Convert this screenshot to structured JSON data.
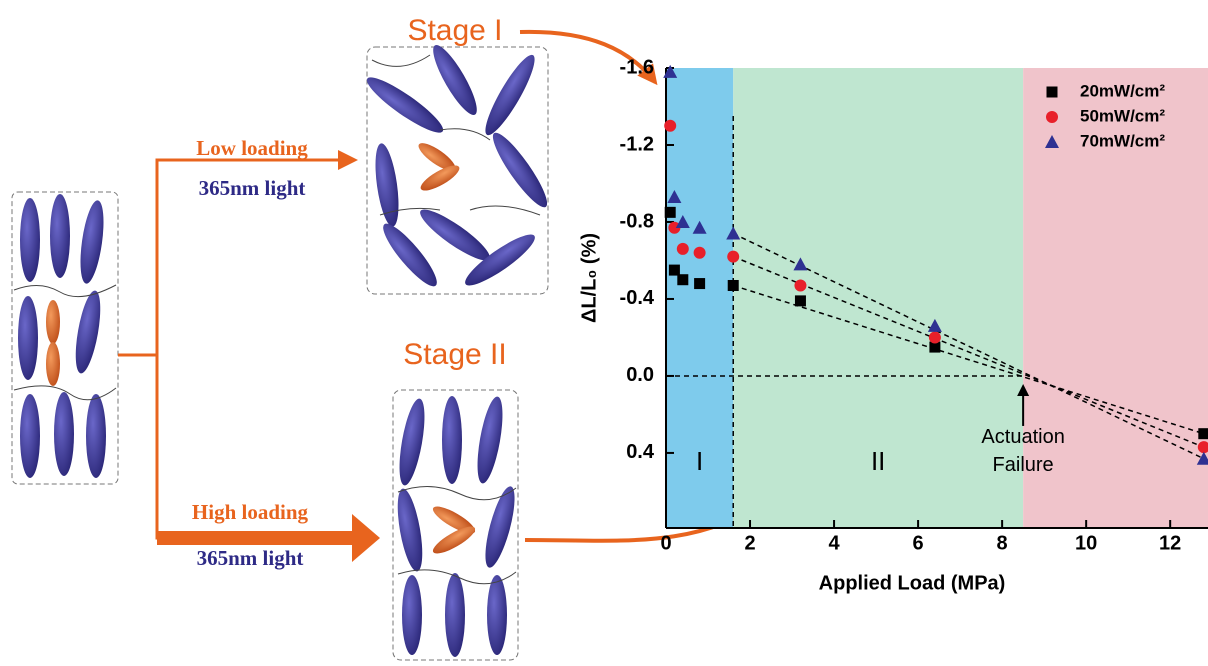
{
  "schematic": {
    "stage1": "Stage I",
    "stage2": "Stage II",
    "low_loading": "Low loading",
    "low_light": "365nm light",
    "high_loading": "High loading",
    "high_light": "365nm light"
  },
  "chart_data": {
    "type": "scatter",
    "xlabel": "Applied Load (MPa)",
    "ylabel": "ΔL/L₀ (%)",
    "xlim": [
      0,
      12.9
    ],
    "xticks": [
      0,
      2,
      4,
      6,
      8,
      10,
      12
    ],
    "ylim": [
      0.79,
      -1.6
    ],
    "yticks": [
      -1.6,
      -1.2,
      -0.8,
      -0.4,
      {
        "value": 0,
        "label": "0.0"
      },
      0.4
    ],
    "legend": "upper right",
    "regions": [
      {
        "label": "I",
        "x": [
          0,
          1.6
        ],
        "color": "#7ecbec"
      },
      {
        "label": "II",
        "x": [
          1.6,
          8.5
        ],
        "color": "#bfe6d0"
      },
      {
        "x": [
          8.5,
          12.9
        ],
        "color": "#f0c4cb"
      }
    ],
    "annotation": {
      "lines": [
        "Actuation",
        "Failure"
      ],
      "x": 8.5,
      "y": 0
    },
    "x": [
      0.1,
      0.2,
      0.4,
      0.8,
      1.6,
      3.2,
      6.4,
      12.8
    ],
    "series": [
      {
        "name": "20mW/cm²",
        "color": "#000000",
        "marker": "square",
        "values": [
          -0.85,
          -0.55,
          -0.5,
          -0.48,
          -0.47,
          -0.39,
          -0.15,
          0.3
        ]
      },
      {
        "name": "50mW/cm²",
        "color": "#e8202a",
        "marker": "circle",
        "values": [
          -1.3,
          -0.77,
          -0.66,
          -0.64,
          -0.62,
          -0.47,
          -0.2,
          0.37
        ]
      },
      {
        "name": "70mW/cm²",
        "color": "#2e3192",
        "marker": "triangle",
        "values": [
          -1.58,
          -0.93,
          -0.8,
          -0.77,
          -0.74,
          -0.58,
          -0.26,
          0.43
        ]
      }
    ]
  }
}
